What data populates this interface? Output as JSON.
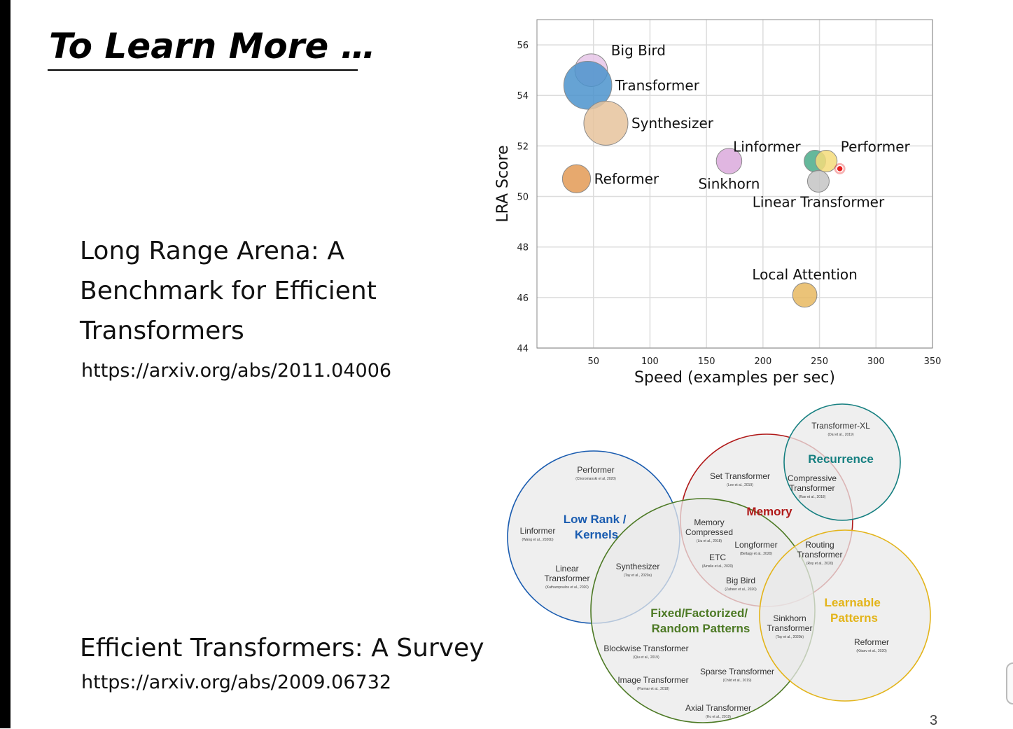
{
  "slide": {
    "title": "To Learn More …",
    "page_number": "3",
    "references": [
      {
        "title_lines": [
          "Long Range Arena: A",
          "Benchmark for Efficient",
          "Transformers"
        ],
        "url": "https://arxiv.org/abs/2011.04006"
      },
      {
        "title_lines": [
          "Efficient Transformers: A Survey"
        ],
        "url": "https://arxiv.org/abs/2009.06732"
      }
    ]
  },
  "chart_data": {
    "type": "scatter",
    "title": "",
    "xlabel": "Speed (examples per sec)",
    "ylabel": "LRA Score",
    "xlim": [
      0,
      350
    ],
    "ylim": [
      44,
      57
    ],
    "xticks": [
      50,
      100,
      150,
      200,
      250,
      300,
      350
    ],
    "yticks": [
      44,
      46,
      48,
      50,
      52,
      54,
      56
    ],
    "grid": true,
    "points": [
      {
        "name": "Big Bird",
        "x": 48,
        "y": 55.0,
        "memory": 3.0,
        "color": "#e6c5e8",
        "label_pos": "top-right"
      },
      {
        "name": "Transformer",
        "x": 45,
        "y": 54.4,
        "memory": 8.0,
        "color": "#4b93cc",
        "label_pos": "right"
      },
      {
        "name": "Synthesizer",
        "x": 61,
        "y": 52.9,
        "memory": 6.5,
        "color": "#e6c39c",
        "label_pos": "right"
      },
      {
        "name": "Reformer",
        "x": 35,
        "y": 50.7,
        "memory": 2.0,
        "color": "#e39a55",
        "label_pos": "right"
      },
      {
        "name": "Sinkhorn",
        "x": 170,
        "y": 51.4,
        "memory": 1.5,
        "color": "#dba9dc",
        "label_pos": "bottom"
      },
      {
        "name": "Linformer",
        "x": 246,
        "y": 51.4,
        "memory": 0.9,
        "color": "#4aab8a",
        "label_pos": "top-left"
      },
      {
        "name": "Performer",
        "x": 256,
        "y": 51.4,
        "memory": 0.9,
        "color": "#f4dc7a",
        "label_pos": "top-right"
      },
      {
        "name": "Linear Transformer",
        "x": 249,
        "y": 50.6,
        "memory": 0.9,
        "color": "#c4c4c4",
        "label_pos": "bottom"
      },
      {
        "name": "Local Attention",
        "x": 237,
        "y": 46.1,
        "memory": 1.3,
        "color": "#e8b860",
        "label_pos": "top"
      }
    ],
    "pointer": {
      "x": 268,
      "y": 51.1,
      "color": "#e8201f"
    }
  },
  "venn": {
    "categories": [
      {
        "name": "Low Rank / Kernels",
        "lines": [
          "Low Rank /",
          "Kernels"
        ],
        "color": "#1a5cb0"
      },
      {
        "name": "Memory",
        "lines": [
          "Memory"
        ],
        "color": "#b01818"
      },
      {
        "name": "Recurrence",
        "lines": [
          "Recurrence"
        ],
        "color": "#157f80"
      },
      {
        "name": "Fixed/Factorized/ Random Patterns",
        "lines": [
          "Fixed/Factorized/",
          "Random Patterns"
        ],
        "color": "#4d7a25"
      },
      {
        "name": "Learnable Patterns",
        "lines": [
          "Learnable",
          "Patterns"
        ],
        "color": "#e3b41a"
      }
    ],
    "models": [
      {
        "name": "Performer",
        "lines": [
          "Performer"
        ],
        "cite": "(Choromanski et al, 2020)"
      },
      {
        "name": "Linformer",
        "lines": [
          "Linformer"
        ],
        "cite": "(Wang et al., 2020b)"
      },
      {
        "name": "Linear Transformer",
        "lines": [
          "Linear",
          "Transformer"
        ],
        "cite": "(Katharopoulos et al., 2020)"
      },
      {
        "name": "Synthesizer",
        "lines": [
          "Synthesizer"
        ],
        "cite": "(Tay et al., 2020a)"
      },
      {
        "name": "Set Transformer",
        "lines": [
          "Set Transformer"
        ],
        "cite": "(Lee et al., 2019)"
      },
      {
        "name": "Transformer-XL",
        "lines": [
          "Transformer-XL"
        ],
        "cite": "(Dai et al., 2019)"
      },
      {
        "name": "Compressive Transformer",
        "lines": [
          "Compressive",
          "Transformer"
        ],
        "cite": "(Rae et al., 2018)"
      },
      {
        "name": "Memory Compressed",
        "lines": [
          "Memory",
          "Compressed"
        ],
        "cite": "(Liu et al., 2018)"
      },
      {
        "name": "Longformer",
        "lines": [
          "Longformer"
        ],
        "cite": "(Beltagy et al., 2020)"
      },
      {
        "name": "ETC",
        "lines": [
          "ETC"
        ],
        "cite": "(Ainslie et al., 2020)"
      },
      {
        "name": "Big Bird",
        "lines": [
          "Big Bird"
        ],
        "cite": "(Zaheer et al., 2020)"
      },
      {
        "name": "Routing Transformer",
        "lines": [
          "Routing",
          "Transformer"
        ],
        "cite": "(Roy et al., 2020)"
      },
      {
        "name": "Sinkhorn Transformer",
        "lines": [
          "Sinkhorn",
          "Transformer"
        ],
        "cite": "(Tay et al., 2020b)"
      },
      {
        "name": "Reformer",
        "lines": [
          "Reformer"
        ],
        "cite": "(Kitaev et al., 2020)"
      },
      {
        "name": "Blockwise Transformer",
        "lines": [
          "Blockwise Transformer"
        ],
        "cite": "(Qiu et al., 2019)"
      },
      {
        "name": "Sparse Transformer",
        "lines": [
          "Sparse Transformer"
        ],
        "cite": "(Child et al., 2019)"
      },
      {
        "name": "Image Transformer",
        "lines": [
          "Image Transformer"
        ],
        "cite": "(Parmar et al., 2018)"
      },
      {
        "name": "Axial Transformer",
        "lines": [
          "Axial Transformer"
        ],
        "cite": "(Ho et al., 2019)"
      }
    ]
  }
}
